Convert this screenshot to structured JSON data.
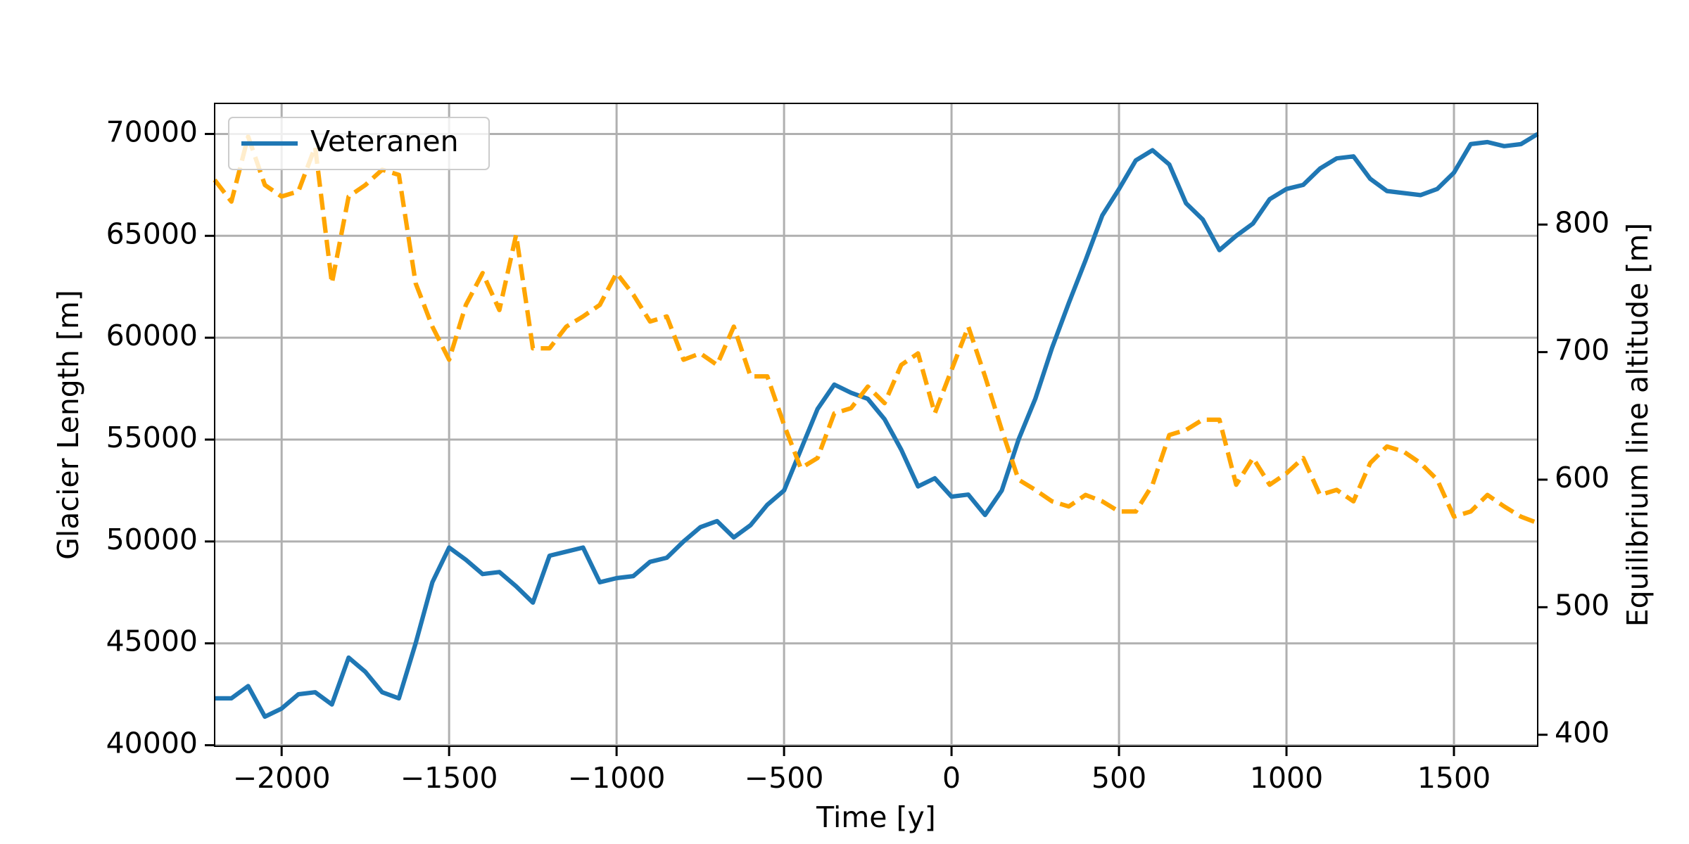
{
  "chart_data": {
    "type": "line",
    "xlabel": "Time [y]",
    "ylabel": "Glacier Length [m]",
    "y2label": "Equilibrium line altitude [m]",
    "x": [
      -2200,
      -2150,
      -2100,
      -2050,
      -2000,
      -1950,
      -1900,
      -1850,
      -1800,
      -1750,
      -1700,
      -1650,
      -1600,
      -1550,
      -1500,
      -1450,
      -1400,
      -1350,
      -1300,
      -1250,
      -1200,
      -1150,
      -1100,
      -1050,
      -1000,
      -950,
      -900,
      -850,
      -800,
      -750,
      -700,
      -650,
      -600,
      -550,
      -500,
      -450,
      -400,
      -350,
      -300,
      -250,
      -200,
      -150,
      -100,
      -50,
      0,
      50,
      100,
      150,
      200,
      250,
      300,
      350,
      400,
      450,
      500,
      550,
      600,
      650,
      700,
      750,
      800,
      850,
      900,
      950,
      1000,
      1050,
      1100,
      1150,
      1200,
      1250,
      1300,
      1350,
      1400,
      1450,
      1500,
      1550,
      1600,
      1650,
      1700,
      1750
    ],
    "series": [
      {
        "name": "Veteranen",
        "color": "#1f77b4",
        "style": "solid",
        "values": [
          42300,
          42300,
          42900,
          41400,
          41800,
          42500,
          42600,
          42000,
          44300,
          43600,
          42600,
          42300,
          45000,
          48000,
          49700,
          49100,
          48400,
          48500,
          47800,
          47000,
          49300,
          49500,
          49700,
          48000,
          48200,
          48300,
          49000,
          49200,
          50000,
          50700,
          51000,
          50200,
          50800,
          51800,
          52500,
          54500,
          56500,
          57700,
          57300,
          57000,
          56000,
          54500,
          52700,
          53100,
          52200,
          52300,
          51300,
          52500,
          55000,
          57000,
          59500,
          61700,
          63800,
          66000,
          67300,
          68700,
          69200,
          68500,
          66600,
          65800,
          64300,
          65000,
          65600,
          66800,
          67300,
          67500,
          68300,
          68800,
          68900,
          67800,
          67200,
          67100,
          67000,
          67300,
          68100,
          69500,
          69600,
          69400,
          69500,
          70000
        ]
      },
      {
        "color": "#ffa500",
        "style": "dashed",
        "axis": "y2",
        "values": [
          835,
          818,
          869,
          831,
          822,
          826,
          861,
          754,
          822,
          831,
          843,
          839,
          754,
          720,
          694,
          737,
          762,
          733,
          792,
          703,
          703,
          720,
          728,
          737,
          762,
          745,
          724,
          728,
          694,
          699,
          690,
          720,
          681,
          681,
          643,
          609,
          617,
          652,
          656,
          673,
          660,
          690,
          699,
          652,
          686,
          720,
          681,
          639,
          600,
          592,
          583,
          579,
          588,
          583,
          575,
          575,
          596,
          635,
          639,
          647,
          647,
          596,
          617,
          596,
          605,
          617,
          588,
          592,
          583,
          613,
          626,
          622,
          613,
          600,
          571,
          575,
          588,
          579,
          571,
          566
        ]
      }
    ],
    "xlim": [
      -2200,
      1750
    ],
    "xticks": [
      {
        "value": -2000,
        "label": "−2000"
      },
      {
        "value": -1500,
        "label": "−1500"
      },
      {
        "value": -1000,
        "label": "−1000"
      },
      {
        "value": -500,
        "label": "−500"
      },
      0,
      500,
      1000,
      1500
    ],
    "ylim": [
      39950,
      71500
    ],
    "yticks": [
      40000,
      45000,
      50000,
      55000,
      60000,
      65000,
      70000
    ],
    "y2lim": [
      391,
      895
    ],
    "y2ticks": [
      400,
      500,
      600,
      700,
      800
    ],
    "grid": true,
    "legend": "upper left"
  }
}
